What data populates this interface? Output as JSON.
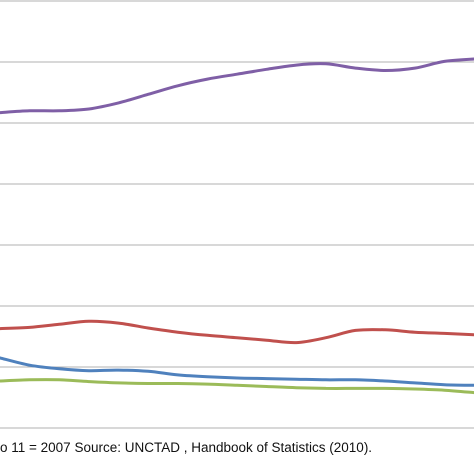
{
  "caption": "o 11 = 2007 Source: UNCTAD , Handbook of Statistics (2010).",
  "chart_data": {
    "type": "line",
    "x": [
      0,
      1,
      2,
      3,
      4,
      5,
      6,
      7,
      8,
      9,
      10,
      11,
      12,
      13,
      14,
      15,
      16
    ],
    "ylim": [
      0,
      7
    ],
    "grid": true,
    "series": [
      {
        "color": "#7f5fa6",
        "values": [
          5.17,
          5.2,
          5.2,
          5.23,
          5.33,
          5.47,
          5.61,
          5.72,
          5.8,
          5.88,
          5.95,
          5.97,
          5.9,
          5.86,
          5.9,
          6.01,
          6.05
        ]
      },
      {
        "color": "#c0504d",
        "values": [
          1.63,
          1.65,
          1.7,
          1.75,
          1.72,
          1.64,
          1.57,
          1.52,
          1.48,
          1.44,
          1.4,
          1.48,
          1.6,
          1.61,
          1.57,
          1.55,
          1.53
        ]
      },
      {
        "color": "#4f81bd",
        "values": [
          1.15,
          1.03,
          0.97,
          0.94,
          0.95,
          0.93,
          0.87,
          0.84,
          0.82,
          0.81,
          0.8,
          0.79,
          0.79,
          0.77,
          0.74,
          0.71,
          0.7
        ]
      },
      {
        "color": "#9bbb59",
        "values": [
          0.77,
          0.79,
          0.79,
          0.76,
          0.74,
          0.73,
          0.73,
          0.72,
          0.7,
          0.68,
          0.66,
          0.65,
          0.65,
          0.65,
          0.64,
          0.62,
          0.58
        ]
      }
    ]
  }
}
